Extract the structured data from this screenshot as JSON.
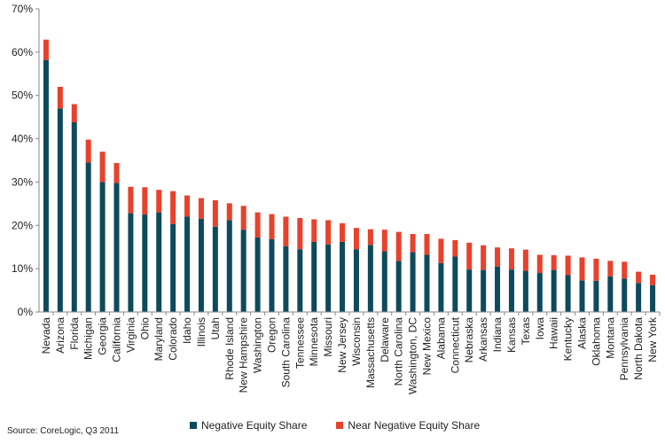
{
  "chart_data": {
    "type": "bar",
    "stacked": true,
    "categories": [
      "Nevada",
      "Arizona",
      "Florida",
      "Michigan",
      "Georgia",
      "California",
      "Virginia",
      "Ohio",
      "Maryland",
      "Colorado",
      "Idaho",
      "Illinois",
      "Utah",
      "Rhode Island",
      "New Hampshire",
      "Washington",
      "Oregon",
      "South Carolina",
      "Tennessee",
      "Minnesota",
      "Missouri",
      "New Jersey",
      "Wisconsin",
      "Massachusetts",
      "Delaware",
      "North Carolina",
      "Washington, DC",
      "New Mexico",
      "Alabama",
      "Connecticut",
      "Nebraska",
      "Arkansas",
      "Indiana",
      "Kansas",
      "Texas",
      "Iowa",
      "Hawaii",
      "Kentucky",
      "Alaska",
      "Oklahoma",
      "Montana",
      "Pennsylvania",
      "North Dakota",
      "New York"
    ],
    "series": [
      {
        "name": "Negative Equity Share",
        "color": "#0d4a5c",
        "values": [
          58.2,
          47.0,
          43.8,
          34.5,
          30.0,
          29.8,
          22.8,
          22.5,
          23.0,
          20.3,
          22.0,
          21.5,
          19.7,
          21.2,
          19.0,
          17.2,
          16.8,
          15.2,
          14.5,
          16.2,
          15.6,
          16.2,
          14.5,
          15.5,
          14.0,
          11.8,
          13.8,
          13.2,
          11.3,
          12.8,
          9.8,
          9.7,
          10.5,
          9.8,
          9.5,
          9.0,
          9.7,
          8.5,
          7.3,
          7.2,
          8.2,
          7.7,
          6.7,
          6.2
        ]
      },
      {
        "name": "Near Negative Equity Share",
        "color": "#e8412c",
        "values": [
          4.7,
          5.0,
          4.2,
          5.3,
          7.0,
          4.6,
          6.1,
          6.3,
          5.2,
          7.6,
          4.9,
          4.8,
          6.1,
          3.9,
          5.5,
          5.8,
          5.8,
          6.8,
          7.2,
          5.2,
          5.6,
          4.3,
          4.9,
          3.6,
          5.0,
          6.7,
          4.2,
          4.8,
          5.6,
          3.8,
          6.2,
          5.7,
          4.4,
          4.9,
          4.9,
          4.2,
          3.4,
          4.5,
          5.3,
          5.1,
          3.6,
          3.9,
          2.6,
          2.4
        ]
      }
    ],
    "yticks": [
      "0%",
      "10%",
      "20%",
      "30%",
      "40%",
      "50%",
      "60%",
      "70%"
    ],
    "ylim": [
      0,
      70
    ],
    "grid": false,
    "legend_position": "bottom-center",
    "source": "Source: CoreLogic, Q3 2011"
  }
}
